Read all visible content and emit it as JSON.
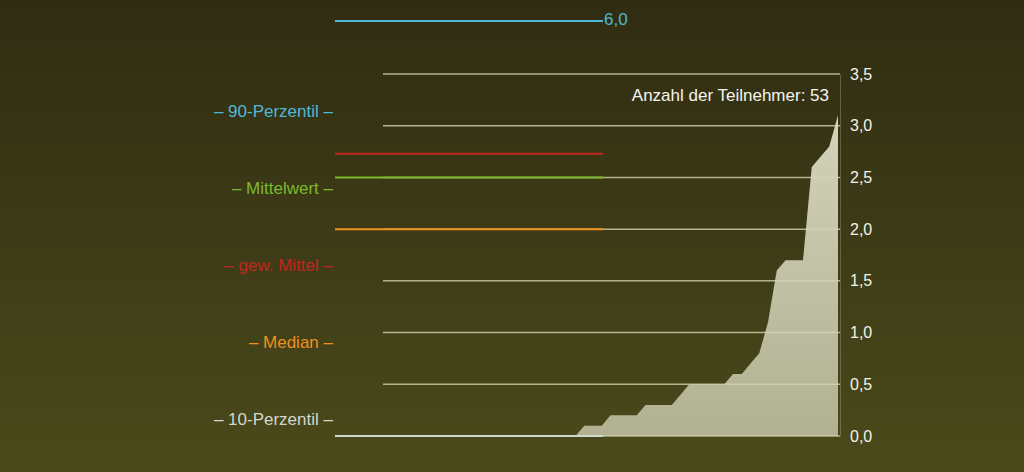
{
  "chart_data": {
    "type": "area",
    "annotation": "Anzahl der Teilnehmer: 53",
    "x": [
      1,
      2,
      3,
      4,
      5,
      6,
      7,
      8,
      9,
      10,
      11,
      12,
      13,
      14,
      15,
      16,
      17,
      18,
      19,
      20,
      21,
      22,
      23,
      24,
      25,
      26,
      27,
      28,
      29,
      30,
      31,
      32,
      33,
      34,
      35,
      36,
      37,
      38,
      39,
      40,
      41,
      42,
      43,
      44,
      45,
      46,
      47,
      48,
      49,
      50,
      51,
      52,
      53
    ],
    "values": [
      0,
      0,
      0,
      0,
      0,
      0,
      0,
      0,
      0,
      0,
      0,
      0,
      0,
      0,
      0,
      0,
      0,
      0,
      0,
      0,
      0,
      0,
      0,
      0.1,
      0.1,
      0.1,
      0.2,
      0.2,
      0.2,
      0.2,
      0.3,
      0.3,
      0.3,
      0.3,
      0.4,
      0.5,
      0.5,
      0.5,
      0.5,
      0.5,
      0.6,
      0.6,
      0.7,
      0.8,
      1.1,
      1.6,
      1.7,
      1.7,
      1.7,
      2.6,
      2.7,
      2.8,
      3.1
    ],
    "color": "#d4d4ba",
    "xlim": [
      1,
      53
    ],
    "ylim": [
      0,
      3.5
    ],
    "yticks": [
      {
        "value": 0,
        "label": "0,0"
      },
      {
        "value": 0.5,
        "label": "0,5"
      },
      {
        "value": 1,
        "label": "1,0"
      },
      {
        "value": 1.5,
        "label": "1,5"
      },
      {
        "value": 2,
        "label": "2,0"
      },
      {
        "value": 2.5,
        "label": "2,5"
      },
      {
        "value": 3,
        "label": "3,0"
      },
      {
        "value": 3.5,
        "label": "3,5"
      }
    ],
    "grid": true,
    "tick_labels": "y",
    "reference_lines": [
      {
        "label": "– 90-Perzentil –",
        "value": 6.0,
        "value_label": "6,0",
        "color": "#4fb8d4"
      },
      {
        "label": "– Mittelwert –",
        "value": 2.5,
        "color": "#7cb82f"
      },
      {
        "label": "– gew. Mittel –",
        "value": 2.73,
        "color": "#c0281e"
      },
      {
        "label": "– Median –",
        "value": 2.0,
        "color": "#f0901e"
      },
      {
        "label": "– 10-Perzentil –",
        "value": 0.0,
        "color": "#d2d8cc"
      }
    ]
  }
}
